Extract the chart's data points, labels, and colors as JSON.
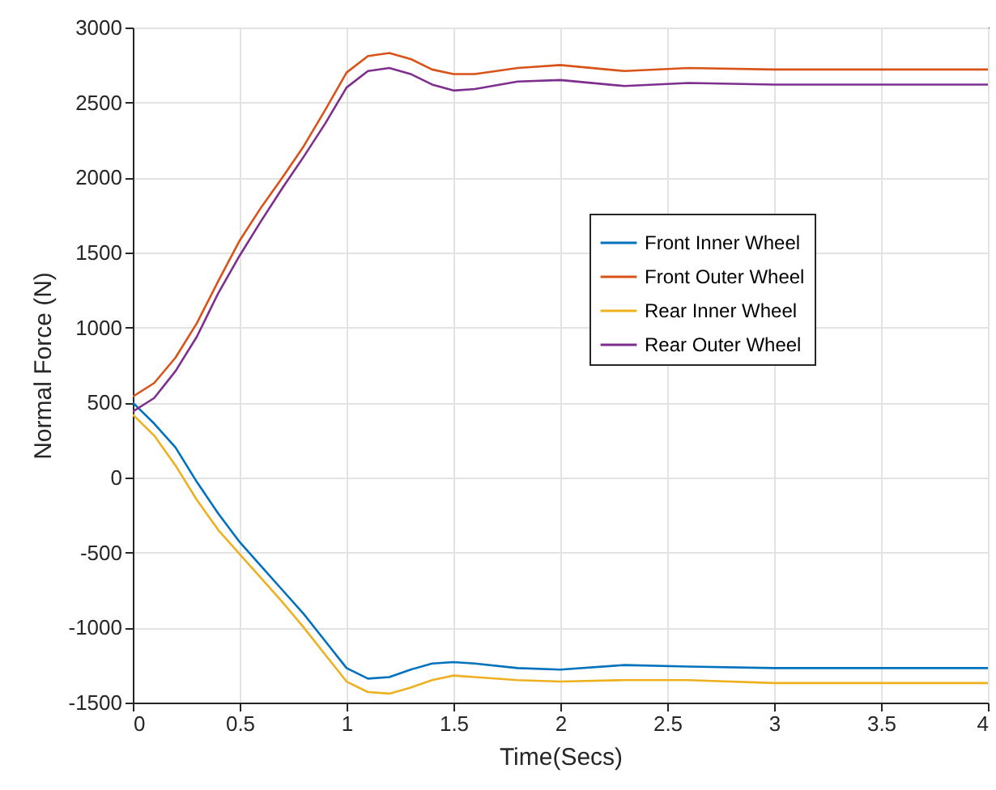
{
  "chart_data": {
    "type": "line",
    "xlabel": "Time(Secs)",
    "ylabel": "Normal Force (N)",
    "xlim": [
      0,
      4
    ],
    "xticks": [
      0,
      0.5,
      1,
      1.5,
      2,
      2.5,
      3,
      3.5,
      4
    ],
    "ylim": [
      -1500,
      3000
    ],
    "yticks": [
      -1500,
      -1000,
      -500,
      0,
      500,
      1000,
      1500,
      2000,
      2500,
      3000
    ],
    "x": [
      0,
      0.1,
      0.2,
      0.3,
      0.4,
      0.5,
      0.6,
      0.7,
      0.8,
      0.9,
      1.0,
      1.1,
      1.2,
      1.3,
      1.4,
      1.5,
      1.6,
      1.8,
      2.0,
      2.3,
      2.6,
      3.0,
      3.5,
      4.0
    ],
    "series": [
      {
        "name": "Front Inner Wheel",
        "color": "#0072bd",
        "values": [
          500,
          360,
          200,
          -30,
          -240,
          -430,
          -590,
          -750,
          -910,
          -1090,
          -1270,
          -1340,
          -1330,
          -1280,
          -1240,
          -1230,
          -1240,
          -1270,
          -1280,
          -1250,
          -1260,
          -1270,
          -1270,
          -1270
        ]
      },
      {
        "name": "Front Outer Wheel",
        "color": "#d95319",
        "values": [
          540,
          630,
          800,
          1030,
          1310,
          1580,
          1800,
          2000,
          2210,
          2450,
          2700,
          2810,
          2830,
          2790,
          2720,
          2690,
          2690,
          2730,
          2750,
          2710,
          2730,
          2720,
          2720,
          2720
        ]
      },
      {
        "name": "Rear Inner Wheel",
        "color": "#edb120",
        "values": [
          420,
          280,
          80,
          -150,
          -350,
          -510,
          -670,
          -830,
          -1000,
          -1180,
          -1360,
          -1430,
          -1440,
          -1400,
          -1350,
          -1320,
          -1330,
          -1350,
          -1360,
          -1350,
          -1350,
          -1370,
          -1370,
          -1370
        ]
      },
      {
        "name": "Rear Outer Wheel",
        "color": "#7e2f8e",
        "values": [
          440,
          530,
          710,
          940,
          1230,
          1480,
          1710,
          1930,
          2140,
          2360,
          2600,
          2710,
          2730,
          2690,
          2620,
          2580,
          2590,
          2640,
          2650,
          2610,
          2630,
          2620,
          2620,
          2620
        ]
      }
    ],
    "grid": true,
    "legend": "right"
  }
}
